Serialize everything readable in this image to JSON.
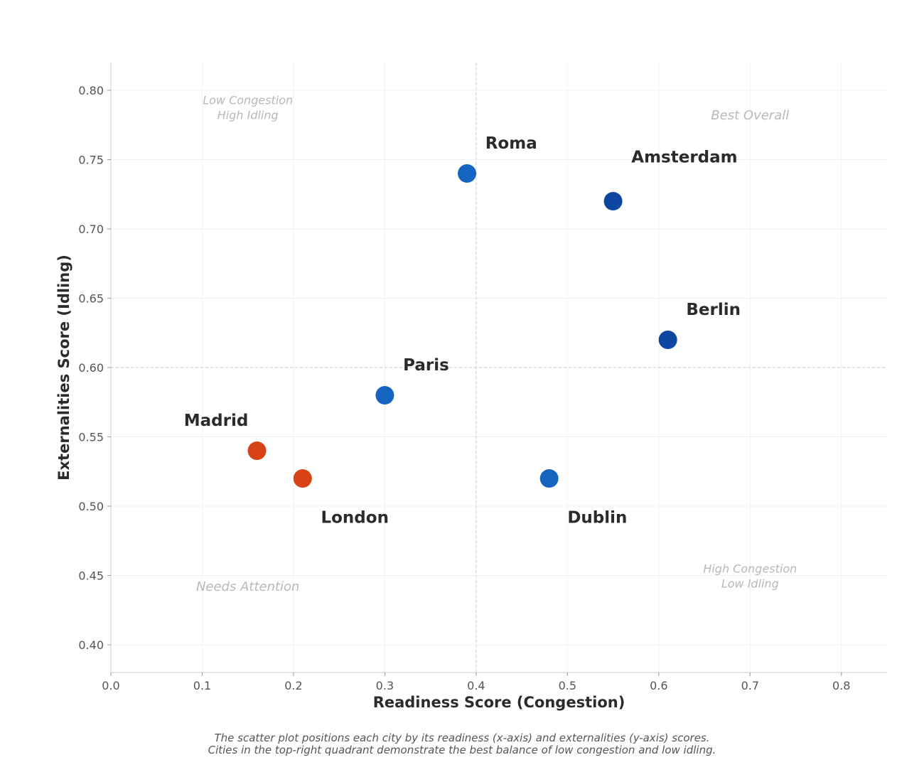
{
  "chart_data": {
    "type": "scatter",
    "xlabel": "Readiness Score (Congestion)",
    "ylabel": "Externalities Score (Idling)",
    "xlim": [
      0.0,
      0.85
    ],
    "ylim": [
      0.38,
      0.82
    ],
    "x_ticks": [
      "0.0",
      "0.1",
      "0.2",
      "0.3",
      "0.4",
      "0.5",
      "0.6",
      "0.7",
      "0.8"
    ],
    "x_tick_values": [
      0.0,
      0.1,
      0.2,
      0.3,
      0.4,
      0.5,
      0.6,
      0.7,
      0.8
    ],
    "y_ticks": [
      "0.40",
      "0.45",
      "0.50",
      "0.55",
      "0.60",
      "0.65",
      "0.70",
      "0.75",
      "0.80"
    ],
    "y_tick_values": [
      0.4,
      0.45,
      0.5,
      0.55,
      0.6,
      0.65,
      0.7,
      0.75,
      0.8
    ],
    "reference_lines": {
      "x": 0.4,
      "y": 0.6
    },
    "points": [
      {
        "name": "Roma",
        "x": 0.39,
        "y": 0.74,
        "color": "#1565c0",
        "label_x": 0.41,
        "label_y": 0.762
      },
      {
        "name": "Amsterdam",
        "x": 0.55,
        "y": 0.72,
        "color": "#0d47a1",
        "label_x": 0.57,
        "label_y": 0.752
      },
      {
        "name": "Berlin",
        "x": 0.61,
        "y": 0.62,
        "color": "#0d47a1",
        "label_x": 0.63,
        "label_y": 0.642
      },
      {
        "name": "Paris",
        "x": 0.3,
        "y": 0.58,
        "color": "#1565c0",
        "label_x": 0.32,
        "label_y": 0.602
      },
      {
        "name": "Madrid",
        "x": 0.16,
        "y": 0.54,
        "color": "#d84315",
        "label_x": 0.08,
        "label_y": 0.562
      },
      {
        "name": "London",
        "x": 0.21,
        "y": 0.52,
        "color": "#d84315",
        "label_x": 0.23,
        "label_y": 0.492
      },
      {
        "name": "Dublin",
        "x": 0.48,
        "y": 0.52,
        "color": "#1565c0",
        "label_x": 0.5,
        "label_y": 0.492
      }
    ],
    "quadrant_labels": [
      {
        "lines": [
          "Low Congestion",
          "High Idling"
        ],
        "x": 0.15,
        "y": 0.79
      },
      {
        "lines": [
          "Best Overall"
        ],
        "x": 0.7,
        "y": 0.782
      },
      {
        "lines": [
          "Needs Attention"
        ],
        "x": 0.15,
        "y": 0.442
      },
      {
        "lines": [
          "High Congestion",
          "Low Idling"
        ],
        "x": 0.7,
        "y": 0.452
      }
    ]
  },
  "caption": {
    "line1": "The scatter plot positions each city by its readiness (x-axis) and externalities (y-axis) scores.",
    "line2": "Cities in the top-right quadrant demonstrate the best balance of low congestion and low idling."
  }
}
